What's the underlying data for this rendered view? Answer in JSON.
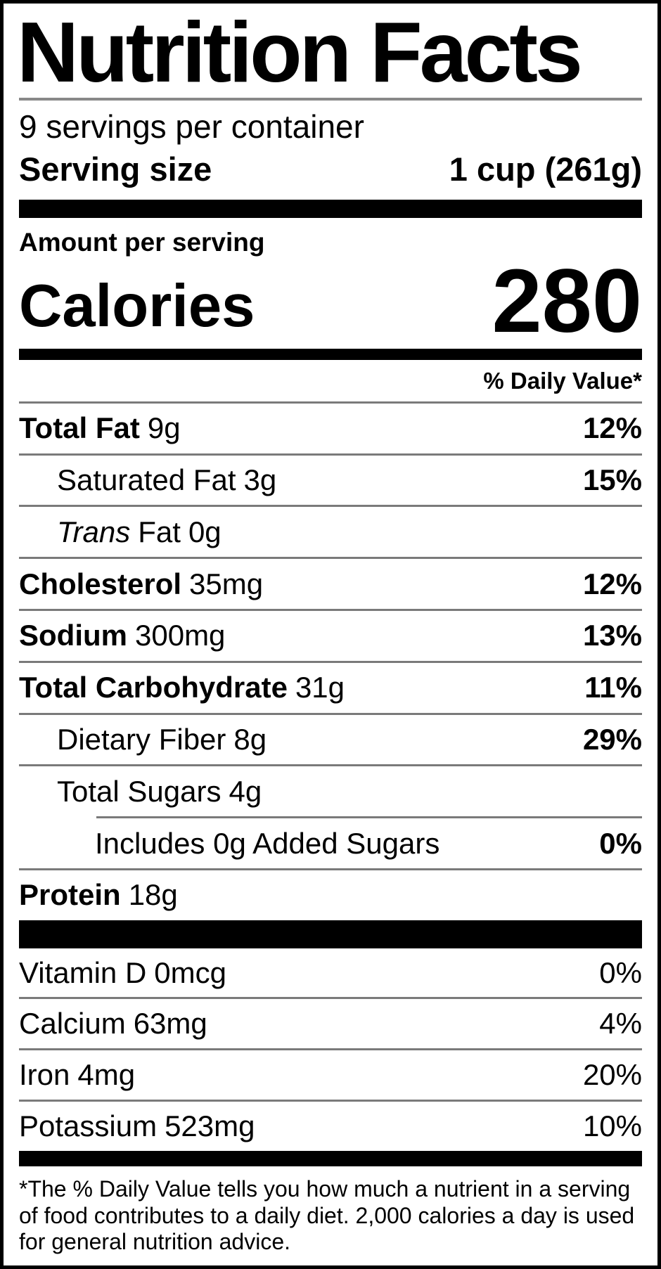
{
  "label": {
    "title": "Nutrition Facts",
    "servings_per_container": "9 servings per container",
    "serving_size_label": "Serving size",
    "serving_size_value": "1 cup (261g)",
    "amount_per_serving": "Amount per serving",
    "calories_label": "Calories",
    "calories_value": "280",
    "daily_value_header": "% Daily Value*",
    "nutrients": [
      {
        "name": "Total Fat",
        "amount": "9g",
        "dv": "12%"
      },
      {
        "name": "Saturated Fat",
        "amount": "3g",
        "dv": "15%"
      },
      {
        "name_italic": "Trans",
        "name": "Fat",
        "amount": "0g",
        "dv": ""
      },
      {
        "name": "Cholesterol",
        "amount": "35mg",
        "dv": "12%"
      },
      {
        "name": "Sodium",
        "amount": "300mg",
        "dv": "13%"
      },
      {
        "name": "Total Carbohydrate",
        "amount": "31g",
        "dv": "11%"
      },
      {
        "name": "Dietary Fiber",
        "amount": "8g",
        "dv": "29%"
      },
      {
        "name": "Total Sugars",
        "amount": "4g",
        "dv": ""
      },
      {
        "name": "Includes 0g Added Sugars",
        "amount": "",
        "dv": "0%"
      },
      {
        "name": "Protein",
        "amount": "18g",
        "dv": ""
      }
    ],
    "vitamins": [
      {
        "name": "Vitamin D",
        "amount": "0mcg",
        "dv": "0%"
      },
      {
        "name": "Calcium",
        "amount": "63mg",
        "dv": "4%"
      },
      {
        "name": "Iron",
        "amount": "4mg",
        "dv": "20%"
      },
      {
        "name": "Potassium",
        "amount": "523mg",
        "dv": "10%"
      }
    ],
    "footnote": "*The % Daily Value tells you how much a nutrient in a serving of food contributes to a daily diet. 2,000 calories a day is used for general nutrition advice."
  },
  "colors": {
    "text": "#000000",
    "bars": "#000000",
    "dividers": "#7a7a7a",
    "border": "#000000",
    "background": "#ffffff"
  }
}
